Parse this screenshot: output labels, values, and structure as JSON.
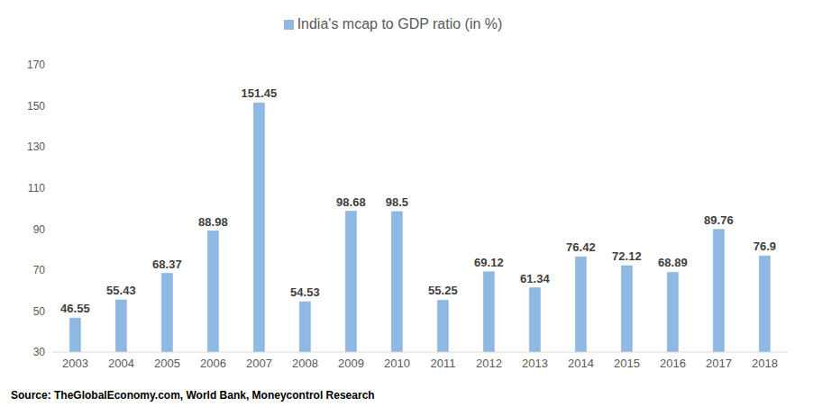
{
  "chart_data": {
    "type": "bar",
    "categories": [
      "2003",
      "2004",
      "2005",
      "2006",
      "2007",
      "2008",
      "2009",
      "2010",
      "2011",
      "2012",
      "2013",
      "2014",
      "2015",
      "2016",
      "2017",
      "2018"
    ],
    "series": [
      {
        "name": "India's mcap to GDP ratio (in %)",
        "color": "#8fb8e3",
        "values": [
          46.55,
          55.43,
          68.37,
          88.98,
          151.45,
          54.53,
          98.68,
          98.5,
          55.25,
          69.12,
          61.34,
          76.42,
          72.12,
          68.89,
          89.76,
          76.9
        ]
      }
    ],
    "ylim": [
      30,
      170
    ],
    "yticks": [
      30,
      50,
      70,
      90,
      110,
      130,
      150,
      170
    ],
    "grid": false,
    "legend": "top",
    "data_labels": true,
    "annotations": [
      "Source: TheGlobalEconomy.com, World Bank, Moneycontrol Research"
    ]
  }
}
